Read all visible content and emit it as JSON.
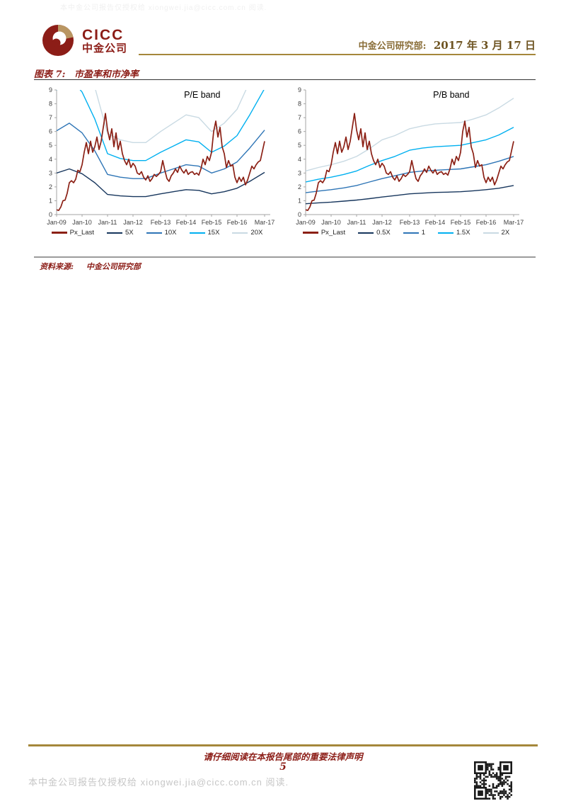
{
  "watermark_top": "本中金公司报告仅授权给 xiongwei.jia@cicc.com.cn 阅读.",
  "header": {
    "logo_en": "CICC",
    "logo_cn": "中金公司",
    "dept": "中金公司研究部:",
    "date": "2017 年 3 月 17 日"
  },
  "figure": {
    "caption_label": "图表 7:",
    "caption_title": "市盈率和市净率",
    "source_label": "资料来源:",
    "source_value": "中金公司研究部"
  },
  "footer": {
    "disclaimer": "请仔细阅读在本报告尾部的重要法律声明",
    "page_number": "5",
    "authorization_note": "本中金公司报告仅授权给 xiongwei.jia@cicc.com.cn 阅读."
  },
  "colors": {
    "maroon": "#8C1D17",
    "logo_gold": "#B99662",
    "gold_text": "#8A6E38",
    "gold_dark": "#6E5422",
    "gold_rule": "#A5873B",
    "axis_line": "#A6A6A6",
    "axis_text": "#404040",
    "px_last": "#8B2015",
    "band_dark": "#17365D",
    "band_mid": "#2E75B6",
    "band_bright": "#00B0F0",
    "band_pale": "#C9DAE3"
  },
  "chart_data": [
    {
      "type": "line",
      "title": "P/E band",
      "x_unit": "months since Jan-2009",
      "x_tick_months": [
        0,
        12,
        24,
        36,
        49,
        61,
        73,
        85,
        98
      ],
      "x_tick_labels": [
        "Jan-09",
        "Jan-10",
        "Jan-11",
        "Jan-12",
        "Feb-13",
        "Feb-14",
        "Feb-15",
        "Feb-16",
        "Mar-17"
      ],
      "ylim": [
        0,
        9
      ],
      "y_ticks": [
        0,
        1,
        2,
        3,
        4,
        5,
        6,
        7,
        8,
        9
      ],
      "grid": false,
      "legend_position": "bottom",
      "band_x_months": [
        0,
        6,
        12,
        18,
        24,
        30,
        36,
        42,
        49,
        55,
        61,
        67,
        73,
        79,
        85,
        91,
        98
      ],
      "series": [
        {
          "name": "Px_Last",
          "color": "#8B2015",
          "monthly": true,
          "values": [
            0.35,
            0.3,
            0.55,
            1.0,
            1.05,
            1.55,
            2.3,
            2.45,
            2.3,
            2.55,
            3.2,
            3.1,
            3.6,
            4.5,
            5.2,
            4.4,
            5.3,
            4.5,
            4.9,
            5.6,
            4.7,
            5.3,
            6.3,
            7.3,
            6.1,
            5.4,
            6.2,
            4.9,
            5.9,
            4.7,
            5.3,
            4.4,
            3.9,
            3.6,
            4.0,
            3.4,
            3.7,
            3.5,
            3.0,
            2.9,
            3.1,
            2.7,
            2.5,
            2.8,
            2.4,
            2.6,
            2.9,
            2.75,
            2.9,
            3.1,
            3.9,
            3.2,
            2.6,
            2.4,
            2.8,
            3.0,
            3.3,
            3.05,
            3.5,
            3.2,
            3.0,
            3.25,
            2.9,
            3.05,
            3.1,
            2.9,
            3.0,
            2.85,
            3.3,
            4.0,
            3.6,
            4.2,
            3.9,
            4.5,
            6.0,
            6.75,
            5.6,
            6.3,
            4.9,
            4.4,
            3.4,
            3.9,
            3.5,
            3.6,
            2.7,
            2.3,
            2.7,
            2.4,
            2.7,
            2.15,
            2.5,
            3.0,
            3.5,
            3.3,
            3.6,
            3.8,
            3.9,
            4.6,
            5.3
          ]
        },
        {
          "name": "5X",
          "color": "#17365D",
          "values": [
            3.0,
            3.3,
            2.95,
            2.3,
            1.45,
            1.35,
            1.3,
            1.3,
            1.5,
            1.65,
            1.8,
            1.75,
            1.5,
            1.65,
            1.9,
            2.4,
            3.05
          ]
        },
        {
          "name": "10X",
          "color": "#2E75B6",
          "values": [
            6.05,
            6.6,
            5.9,
            4.6,
            2.9,
            2.7,
            2.6,
            2.6,
            3.0,
            3.3,
            3.6,
            3.5,
            3.0,
            3.3,
            3.8,
            4.8,
            6.1
          ]
        },
        {
          "name": "15X",
          "color": "#00B0F0",
          "values": [
            9.0,
            9.9,
            8.85,
            6.9,
            4.4,
            4.05,
            3.9,
            3.9,
            4.5,
            4.95,
            5.4,
            5.25,
            4.5,
            4.95,
            5.7,
            7.2,
            9.1
          ]
        },
        {
          "name": "20X",
          "color": "#C9DAE3",
          "values": [
            12.0,
            13.2,
            11.8,
            9.2,
            5.85,
            5.4,
            5.2,
            5.2,
            6.0,
            6.6,
            7.2,
            7.0,
            6.0,
            6.6,
            7.6,
            9.6,
            12.2
          ]
        }
      ]
    },
    {
      "type": "line",
      "title": "P/B band",
      "x_unit": "months since Jan-2009",
      "x_tick_months": [
        0,
        12,
        24,
        36,
        49,
        61,
        73,
        85,
        98
      ],
      "x_tick_labels": [
        "Jan-09",
        "Jan-10",
        "Jan-11",
        "Jan-12",
        "Feb-13",
        "Feb-14",
        "Feb-15",
        "Feb-16",
        "Mar-17"
      ],
      "ylim": [
        0,
        9
      ],
      "y_ticks": [
        0,
        1,
        2,
        3,
        4,
        5,
        6,
        7,
        8,
        9
      ],
      "grid": false,
      "legend_position": "bottom",
      "band_x_months": [
        0,
        6,
        12,
        18,
        24,
        30,
        36,
        42,
        49,
        55,
        61,
        67,
        73,
        79,
        85,
        91,
        98
      ],
      "series": [
        {
          "name": "Px_Last",
          "color": "#8B2015",
          "monthly": true,
          "values": [
            0.35,
            0.3,
            0.55,
            1.0,
            1.05,
            1.55,
            2.3,
            2.45,
            2.3,
            2.55,
            3.2,
            3.1,
            3.6,
            4.5,
            5.2,
            4.4,
            5.3,
            4.5,
            4.9,
            5.6,
            4.7,
            5.3,
            6.3,
            7.3,
            6.1,
            5.4,
            6.2,
            4.9,
            5.9,
            4.7,
            5.3,
            4.4,
            3.9,
            3.6,
            4.0,
            3.4,
            3.7,
            3.5,
            3.0,
            2.9,
            3.1,
            2.7,
            2.5,
            2.8,
            2.4,
            2.6,
            2.9,
            2.75,
            2.9,
            3.1,
            3.9,
            3.2,
            2.6,
            2.4,
            2.8,
            3.0,
            3.3,
            3.05,
            3.5,
            3.2,
            3.0,
            3.25,
            2.9,
            3.05,
            3.1,
            2.9,
            3.0,
            2.85,
            3.3,
            4.0,
            3.6,
            4.2,
            3.9,
            4.5,
            6.0,
            6.75,
            5.6,
            6.3,
            4.9,
            4.4,
            3.4,
            3.9,
            3.5,
            3.6,
            2.7,
            2.3,
            2.7,
            2.4,
            2.7,
            2.15,
            2.5,
            3.0,
            3.5,
            3.3,
            3.6,
            3.8,
            3.9,
            4.6,
            5.3
          ]
        },
        {
          "name": "0.5X",
          "color": "#17365D",
          "values": [
            0.78,
            0.85,
            0.9,
            0.97,
            1.05,
            1.15,
            1.27,
            1.37,
            1.5,
            1.55,
            1.6,
            1.62,
            1.65,
            1.72,
            1.8,
            1.9,
            2.1
          ]
        },
        {
          "name": "1",
          "color": "#2E75B6",
          "values": [
            1.58,
            1.7,
            1.8,
            1.93,
            2.1,
            2.35,
            2.6,
            2.8,
            3.05,
            3.15,
            3.2,
            3.25,
            3.3,
            3.45,
            3.6,
            3.85,
            4.2
          ]
        },
        {
          "name": "1.5X",
          "color": "#00B0F0",
          "values": [
            2.35,
            2.55,
            2.7,
            2.9,
            3.15,
            3.55,
            3.9,
            4.2,
            4.65,
            4.8,
            4.9,
            4.95,
            5.0,
            5.2,
            5.4,
            5.75,
            6.3
          ]
        },
        {
          "name": "2X",
          "color": "#C9DAE3",
          "values": [
            3.15,
            3.4,
            3.6,
            3.85,
            4.2,
            4.75,
            5.4,
            5.7,
            6.2,
            6.4,
            6.55,
            6.6,
            6.65,
            6.9,
            7.2,
            7.7,
            8.4
          ]
        }
      ]
    }
  ]
}
